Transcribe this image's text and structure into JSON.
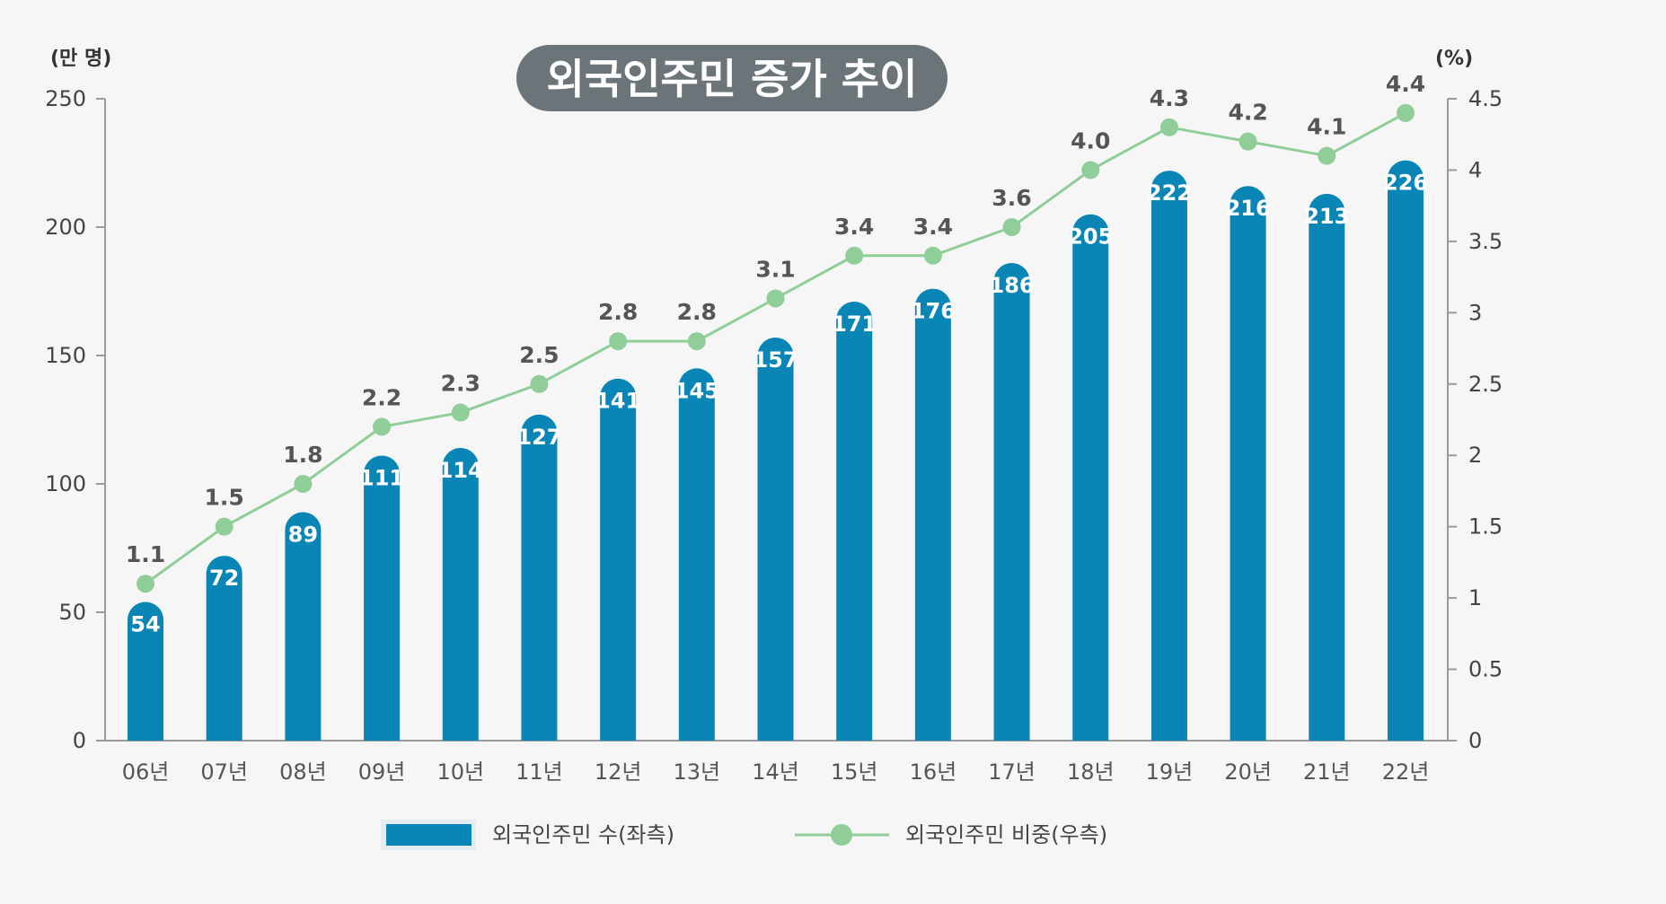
{
  "chart_data": {
    "type": "bar",
    "title": "외국인주민 증가 추이",
    "categories": [
      "06년",
      "07년",
      "08년",
      "09년",
      "10년",
      "11년",
      "12년",
      "13년",
      "14년",
      "15년",
      "16년",
      "17년",
      "18년",
      "19년",
      "20년",
      "21년",
      "22년"
    ],
    "series": [
      {
        "name": "외국인주민 수(좌측)",
        "type": "bar",
        "axis": "left",
        "color": "#0a86b6",
        "values": [
          54,
          72,
          89,
          111,
          114,
          127,
          141,
          145,
          157,
          171,
          176,
          186,
          205,
          222,
          216,
          213,
          226
        ]
      },
      {
        "name": "외국인주민 비중(우측)",
        "type": "line",
        "axis": "right",
        "color": "#8fce98",
        "values": [
          1.1,
          1.5,
          1.8,
          2.2,
          2.3,
          2.5,
          2.8,
          2.8,
          3.1,
          3.4,
          3.4,
          3.6,
          4.0,
          4.3,
          4.2,
          4.1,
          4.4
        ],
        "labels": [
          "1.1",
          "1.5",
          "1.8",
          "2.2",
          "2.3",
          "2.5",
          "2.8",
          "2.8",
          "3.1",
          "3.4",
          "3.4",
          "3.6",
          "4.0",
          "4.3",
          "4.2",
          "4.1",
          "4.4"
        ]
      }
    ],
    "left_axis": {
      "unit": "(만 명)",
      "ylim": [
        0,
        250
      ],
      "ticks": [
        "0",
        "50",
        "100",
        "150",
        "200",
        "250"
      ]
    },
    "right_axis": {
      "unit": "(%)",
      "ylim": [
        0,
        4.5
      ],
      "ticks": [
        "0",
        "0.5",
        "1",
        "1.5",
        "2",
        "2.5",
        "3",
        "3.5",
        "4",
        "4.5"
      ]
    },
    "legend": {
      "position": "bottom-center",
      "items": [
        "외국인주민 수(좌측)",
        "외국인주민 비중(우측)"
      ]
    },
    "grid": false,
    "title_color": "#6b7479"
  }
}
